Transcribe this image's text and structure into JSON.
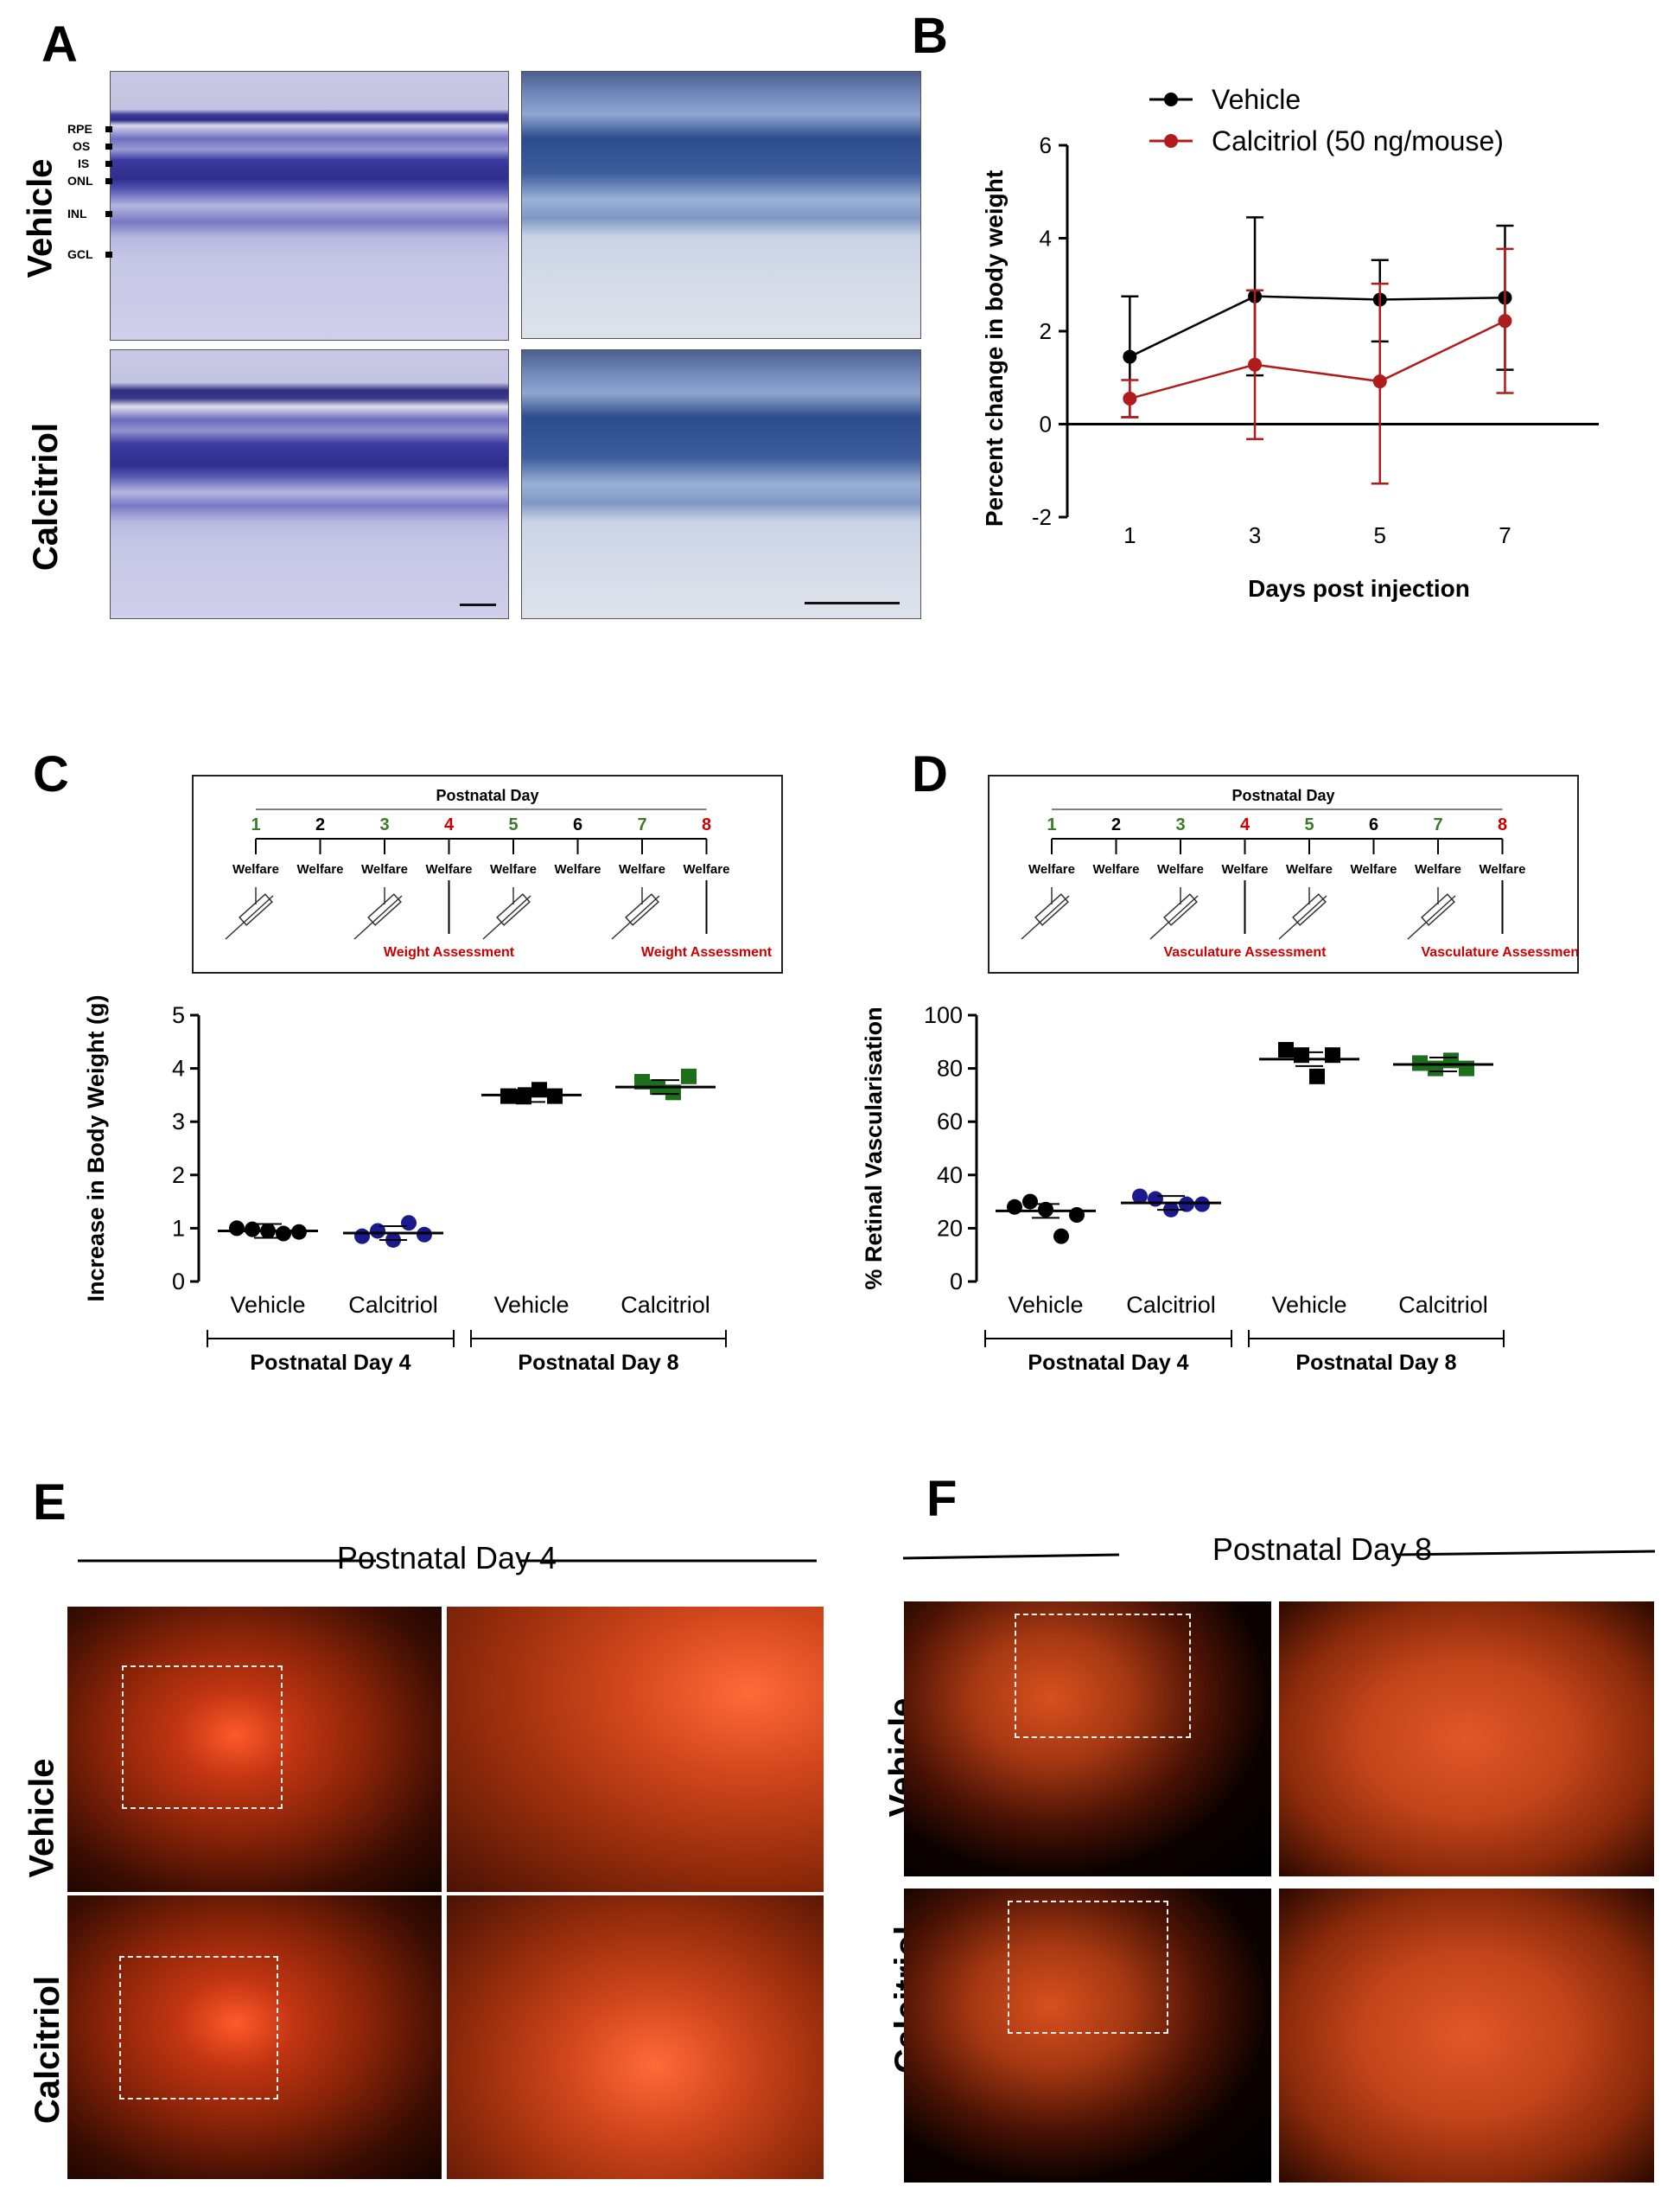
{
  "panels": {
    "a": "A",
    "b": "B",
    "c": "C",
    "d": "D",
    "e": "E",
    "f": "F"
  },
  "panel_a": {
    "rows": [
      "Vehicle",
      "Calcitriol"
    ],
    "layers": [
      "RPE",
      "OS",
      "IS",
      "ONL",
      "INL",
      "GCL"
    ]
  },
  "timeline_c": {
    "title": "Postnatal Day",
    "days": [
      "1",
      "2",
      "3",
      "4",
      "5",
      "6",
      "7",
      "8"
    ],
    "day_colors": [
      "#3a7a2a",
      "#000000",
      "#3a7a2a",
      "#cc0000",
      "#3a7a2a",
      "#000000",
      "#3a7a2a",
      "#cc0000"
    ],
    "event_label": "Welfare",
    "assessments": [
      "Weight Assessment",
      "Weight Assessment"
    ]
  },
  "timeline_d": {
    "title": "Postnatal Day",
    "days": [
      "1",
      "2",
      "3",
      "4",
      "5",
      "6",
      "7",
      "8"
    ],
    "event_label": "Welfare",
    "assessments": [
      "Vasculature Assessment",
      "Vasculature Assessment"
    ]
  },
  "panel_e": {
    "title": "Postnatal Day 4",
    "rows": [
      "Vehicle",
      "Calcitriol"
    ]
  },
  "panel_f": {
    "title": "Postnatal Day 8",
    "rows": [
      "Vehicle",
      "Calcitriol"
    ]
  },
  "colors": {
    "vehicle": "#000000",
    "calcitriol_b": "#b01c1c",
    "calcitriol_pd4": "#1a1a8c",
    "calcitriol_pd8": "#1d6e1d"
  },
  "chart_data": [
    {
      "type": "line",
      "xlabel": "Days post injection",
      "ylabel": "Percent change in body weight",
      "x": [
        1,
        3,
        5,
        7
      ],
      "xlim": [
        0,
        8.5
      ],
      "ylim": [
        -2,
        6
      ],
      "yticks": [
        -2,
        0,
        2,
        4,
        6
      ],
      "legend_position": "top",
      "series": [
        {
          "name": "Vehicle",
          "values": [
            1.45,
            2.75,
            2.68,
            2.72
          ],
          "err_lo": [
            1.3,
            1.7,
            0.9,
            1.55
          ],
          "err_hi": [
            1.3,
            1.7,
            0.85,
            1.55
          ]
        },
        {
          "name": "Calcitriol (50 ng/mouse)",
          "values": [
            0.55,
            1.28,
            0.92,
            2.22
          ],
          "err_lo": [
            0.4,
            1.6,
            2.2,
            1.55
          ],
          "err_hi": [
            0.4,
            1.6,
            2.1,
            1.55
          ]
        }
      ]
    },
    {
      "type": "scatter",
      "ylabel": "Increase in Body Weight  (g)",
      "ylim": [
        0,
        5
      ],
      "yticks": [
        0,
        1,
        2,
        3,
        4,
        5
      ],
      "categories": [
        "Vehicle",
        "Calcitriol",
        "Vehicle",
        "Calcitriol"
      ],
      "groups": [
        "Postnatal Day 4",
        "Postnatal Day 8"
      ],
      "points": [
        [
          1.0,
          0.98,
          0.95,
          0.9,
          0.93
        ],
        [
          0.85,
          0.95,
          0.78,
          1.1,
          0.88
        ],
        [
          3.48,
          3.47,
          3.6,
          3.48
        ],
        [
          3.75,
          3.65,
          3.55,
          3.85
        ]
      ],
      "means": [
        0.95,
        0.91,
        3.5,
        3.65
      ]
    },
    {
      "type": "scatter",
      "ylabel": "% Retinal Vascularisation",
      "ylim": [
        0,
        100
      ],
      "yticks": [
        0,
        20,
        40,
        60,
        80,
        100
      ],
      "categories": [
        "Vehicle",
        "Calcitriol",
        "Vehicle",
        "Calcitriol"
      ],
      "groups": [
        "Postnatal Day 4",
        "Postnatal Day 8"
      ],
      "points": [
        [
          28,
          30,
          27,
          17,
          25
        ],
        [
          32,
          31,
          27,
          29,
          29
        ],
        [
          87,
          85,
          77,
          85
        ],
        [
          82,
          80,
          83,
          80
        ]
      ],
      "means": [
        26.5,
        29.5,
        83.5,
        81.5
      ]
    }
  ]
}
